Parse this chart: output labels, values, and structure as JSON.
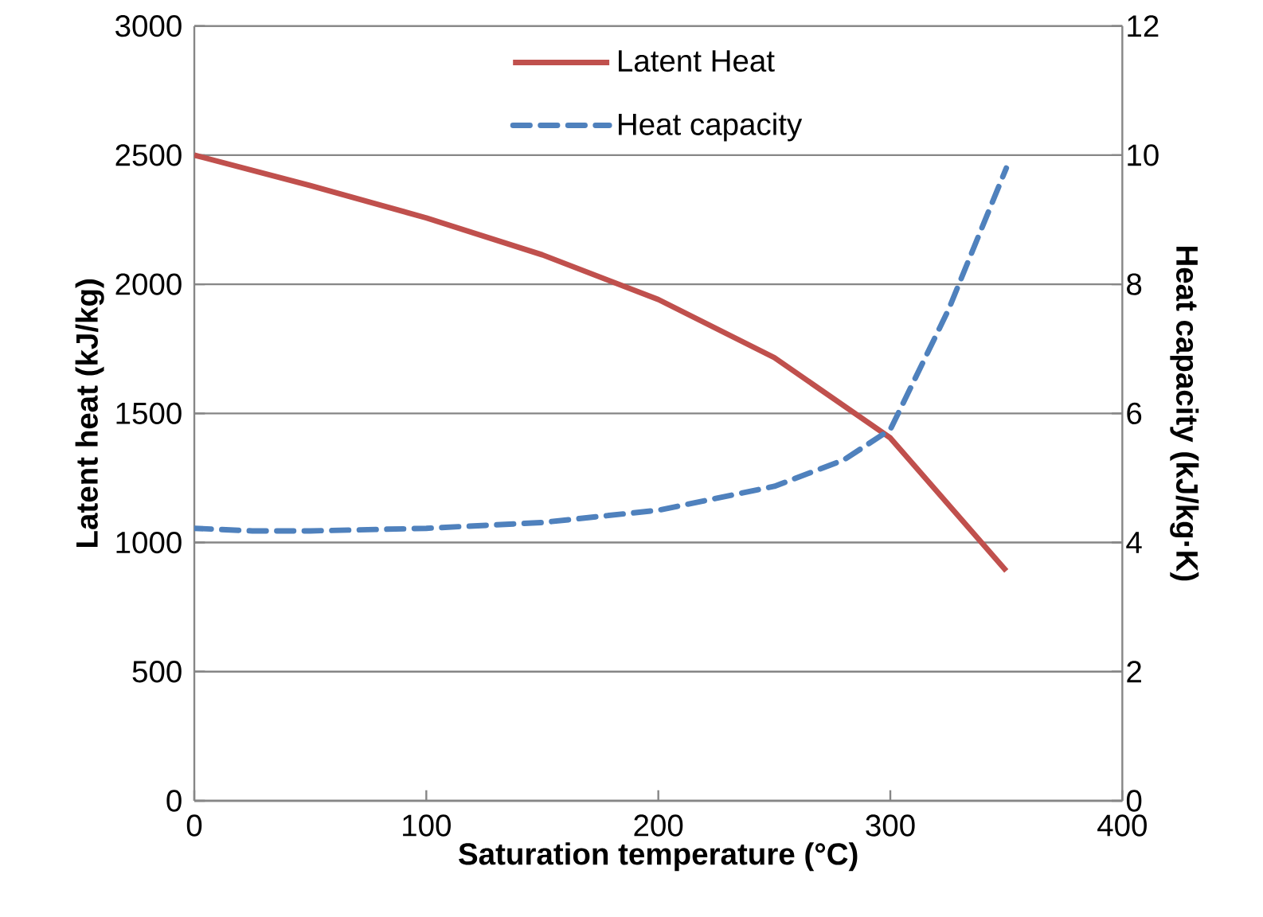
{
  "chart_data": {
    "type": "line",
    "xlabel": "Saturation temperature (°C)",
    "ylabel": "Latent heat (kJ/kg)",
    "y2label": "Heat capacity (kJ/kg·K)",
    "xlim": [
      0,
      400
    ],
    "xticks": [
      0,
      100,
      200,
      300,
      400
    ],
    "ylim": [
      0,
      3000
    ],
    "yticks": [
      0,
      500,
      1000,
      1500,
      2000,
      2500,
      3000
    ],
    "y2lim": [
      0,
      12
    ],
    "y2ticks": [
      0,
      2,
      4,
      6,
      8,
      10,
      12
    ],
    "grid": "y",
    "legend": "top",
    "marker": "none",
    "series": [
      {
        "name": "Latent Heat",
        "color": "#c0504d",
        "line_style": "solid",
        "x": [
          0,
          50,
          100,
          150,
          200,
          250,
          300,
          350
        ],
        "values": [
          2500,
          2382,
          2257,
          2114,
          1941,
          1716,
          1405,
          890
        ]
      },
      {
        "name": "Heat capacity",
        "color": "#4f81bd",
        "line_style": "dashed",
        "axis": "y2",
        "x": [
          0,
          25,
          50,
          100,
          150,
          200,
          250,
          280,
          300,
          325,
          350
        ],
        "values": [
          4.22,
          4.18,
          4.18,
          4.22,
          4.31,
          4.5,
          4.87,
          5.28,
          5.75,
          7.6,
          9.8
        ]
      }
    ]
  }
}
